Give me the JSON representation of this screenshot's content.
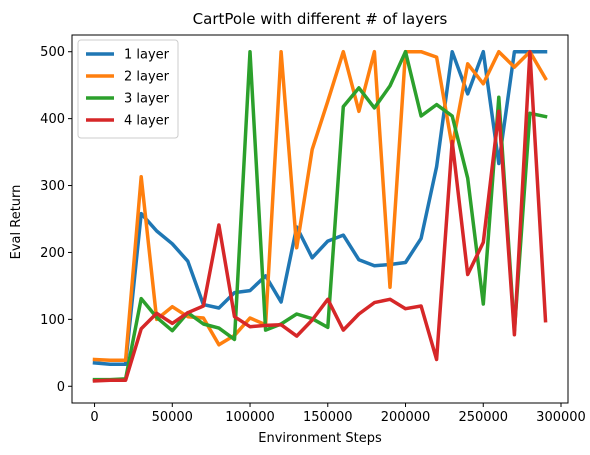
{
  "chart_data": {
    "type": "line",
    "title": "CartPole with different # of layers",
    "xlabel": "Environment Steps",
    "ylabel": "Eval Return",
    "xlim": [
      -14500,
      304500
    ],
    "ylim": [
      -25,
      525
    ],
    "xticks": [
      0,
      50000,
      100000,
      150000,
      200000,
      250000,
      300000
    ],
    "yticks": [
      0,
      100,
      200,
      300,
      400,
      500
    ],
    "grid": false,
    "legend_position": "top-left",
    "x": [
      0,
      10000,
      20000,
      30000,
      40000,
      50000,
      60000,
      70000,
      80000,
      90000,
      100000,
      110000,
      120000,
      130000,
      140000,
      150000,
      160000,
      170000,
      180000,
      190000,
      200000,
      210000,
      220000,
      230000,
      240000,
      250000,
      260000,
      270000,
      280000,
      290000
    ],
    "series": [
      {
        "name": "1 layer",
        "color": "#1f77b4",
        "values": [
          35,
          33,
          33,
          258,
          232,
          213,
          187,
          122,
          117,
          140,
          143,
          165,
          126,
          238,
          192,
          217,
          226,
          189,
          180,
          182,
          185,
          221,
          328,
          500,
          437,
          500,
          333,
          500,
          500,
          500
        ]
      },
      {
        "name": "2 layer",
        "color": "#ff7f0e",
        "values": [
          40,
          39,
          39,
          313,
          100,
          119,
          104,
          102,
          62,
          76,
          102,
          92,
          500,
          207,
          354,
          426,
          500,
          411,
          500,
          148,
          500,
          500,
          492,
          358,
          482,
          452,
          500,
          477,
          500,
          460
        ]
      },
      {
        "name": "3 layer",
        "color": "#2ca02c",
        "values": [
          10,
          10,
          11,
          131,
          103,
          83,
          110,
          93,
          87,
          70,
          500,
          84,
          93,
          108,
          101,
          88,
          418,
          446,
          416,
          449,
          500,
          404,
          421,
          404,
          311,
          123,
          432,
          83,
          408,
          403
        ]
      },
      {
        "name": "4 layer",
        "color": "#d62728",
        "values": [
          8,
          9,
          9,
          86,
          109,
          94,
          110,
          120,
          241,
          104,
          89,
          91,
          92,
          75,
          99,
          130,
          84,
          108,
          125,
          130,
          116,
          120,
          40,
          366,
          167,
          215,
          411,
          77,
          500,
          98
        ]
      }
    ]
  }
}
